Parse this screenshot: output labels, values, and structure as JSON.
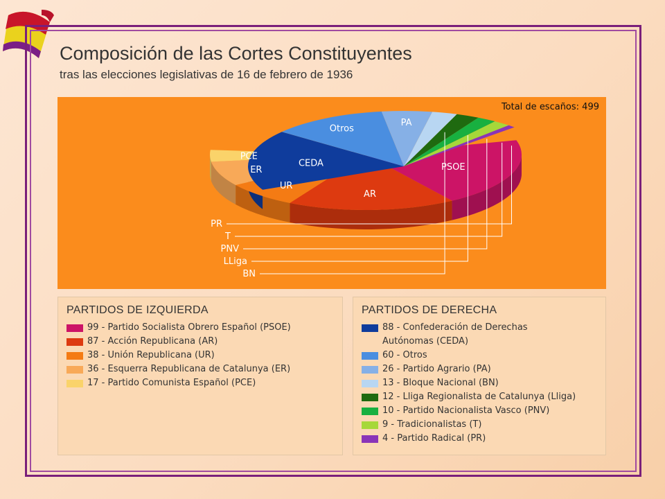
{
  "title": "Composición de las Cortes Constituyentes",
  "subtitle": "tras las elecciones legislativas de 16 de febrero de 1936",
  "total_label": "Total de escaños: 499",
  "legend_left": {
    "heading": "PARTIDOS DE IZQUIERDA",
    "items": [
      {
        "text": "99 - Partido Socialista Obrero Español (PSOE)",
        "color": "#cc1466"
      },
      {
        "text": "87 - Acción Republicana (AR)",
        "color": "#dd3a10"
      },
      {
        "text": "38 - Unión Republicana (UR)",
        "color": "#f47b14"
      },
      {
        "text": "36 - Esquerra Republicana de Catalunya (ER)",
        "color": "#f8a958"
      },
      {
        "text": "17 - Partido Comunista Español (PCE)",
        "color": "#fad36a"
      }
    ]
  },
  "legend_right": {
    "heading": "PARTIDOS DE DERECHA",
    "items": [
      {
        "text": "88 - Confederación de Derechas",
        "text2": "Autónomas (CEDA)",
        "color": "#0f3c9c"
      },
      {
        "text": "60 - Otros",
        "color": "#4a8ee0"
      },
      {
        "text": "26 - Partido Agrario (PA)",
        "color": "#86b0e6"
      },
      {
        "text": "13 - Bloque Nacional (BN)",
        "color": "#b8d6f2"
      },
      {
        "text": "12 - Lliga Regionalista de Catalunya (Lliga)",
        "color": "#1f6a10"
      },
      {
        "text": "10 - Partido Nacionalista Vasco (PNV)",
        "color": "#18b040"
      },
      {
        "text": "9 - Tradicionalistas  (T)",
        "color": "#a6d83a"
      },
      {
        "text": "4 - Partido Radical (PR)",
        "color": "#8a34b8"
      }
    ]
  },
  "chart_data": {
    "type": "pie",
    "title": "Composición de las Cortes Constituyentes",
    "subtitle": "tras las elecciones legislativas de 16 de febrero de 1936",
    "total": 499,
    "groups": [
      {
        "name": "PARTIDOS DE IZQUIERDA",
        "slices": [
          {
            "label": "PSOE",
            "value": 99,
            "color": "#cc1466"
          },
          {
            "label": "AR",
            "value": 87,
            "color": "#dd3a10"
          },
          {
            "label": "UR",
            "value": 38,
            "color": "#f47b14"
          },
          {
            "label": "ER",
            "value": 36,
            "color": "#f8a958"
          },
          {
            "label": "PCE",
            "value": 17,
            "color": "#fad36a"
          }
        ]
      },
      {
        "name": "PARTIDOS DE DERECHA",
        "slices": [
          {
            "label": "CEDA",
            "value": 88,
            "color": "#0f3c9c"
          },
          {
            "label": "Otros",
            "value": 60,
            "color": "#4a8ee0"
          },
          {
            "label": "PA",
            "value": 26,
            "color": "#86b0e6"
          },
          {
            "label": "BN",
            "value": 13,
            "color": "#b8d6f2"
          },
          {
            "label": "LLiga",
            "value": 12,
            "color": "#1f6a10"
          },
          {
            "label": "PNV",
            "value": 10,
            "color": "#18b040"
          },
          {
            "label": "T",
            "value": 9,
            "color": "#a6d83a"
          },
          {
            "label": "PR",
            "value": 4,
            "color": "#8a34b8"
          }
        ]
      }
    ]
  }
}
